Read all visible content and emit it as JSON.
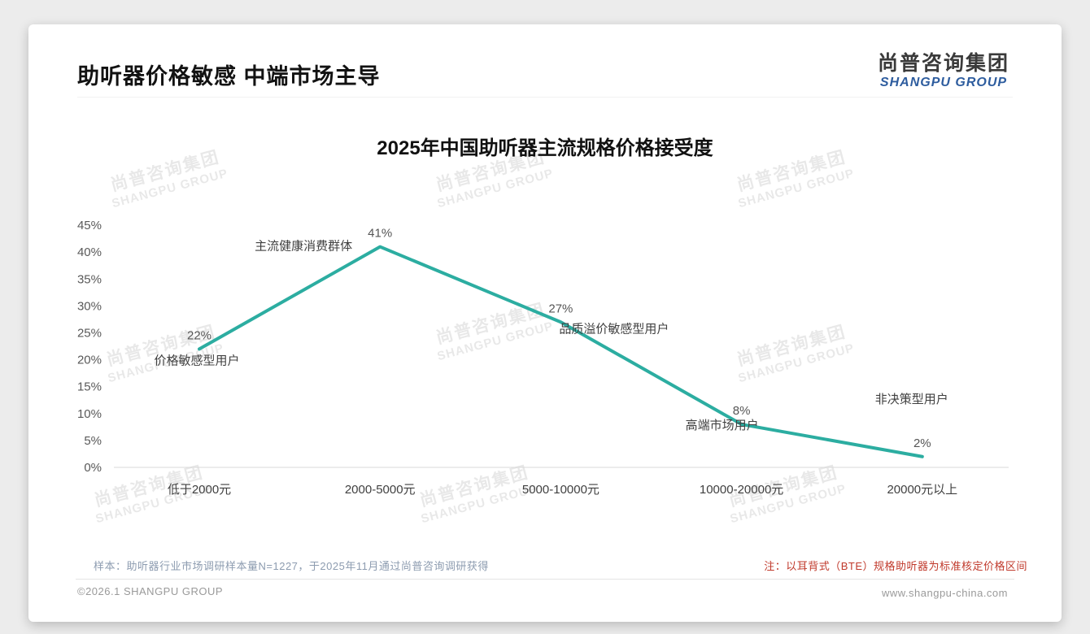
{
  "page": {
    "header": {
      "title": "助听器价格敏感 中端市场主导"
    },
    "logo": {
      "cn": "尚普咨询集团",
      "en": "SHANGPU GROUP"
    },
    "watermark": {
      "line1": "尚普咨询集团",
      "line2": "SHANGPU GROUP"
    },
    "footer": {
      "sample_note": "样本：助听器行业市场调研样本量N=1227，于2025年11月通过尚普咨询调研获得",
      "spec_note": "注：以耳背式（BTE）规格助听器为标准核定价格区间",
      "copyright": "©2026.1 SHANGPU GROUP",
      "website": "www.shangpu-china.com"
    },
    "colors": {
      "line_teal": "#2cada1",
      "note_red": "#c0392b",
      "logo_blue": "#2d5c9e"
    }
  },
  "chart_data": {
    "type": "line",
    "title": "2025年中国助听器主流规格价格接受度",
    "categories": [
      "低于2000元",
      "2000-5000元",
      "5000-10000元",
      "10000-20000元",
      "20000元以上"
    ],
    "values": [
      22,
      41,
      27,
      8,
      2
    ],
    "value_labels": [
      "22%",
      "41%",
      "27%",
      "8%",
      "2%"
    ],
    "point_labels": [
      "价格敏感型用户",
      "主流健康消费群体",
      "品质溢价敏感型用户",
      "高端市场用户",
      "非决策型用户"
    ],
    "ytick_labels": [
      "45%",
      "40%",
      "35%",
      "30%",
      "25%",
      "20%",
      "15%",
      "10%",
      "5%",
      "0%"
    ],
    "ylim": [
      0,
      45
    ],
    "ytick_step": 5,
    "xlabel": "",
    "ylabel": "",
    "grid": false,
    "legend": "none",
    "markers": "none",
    "line_color": "#2cada1",
    "line_width": 4
  }
}
